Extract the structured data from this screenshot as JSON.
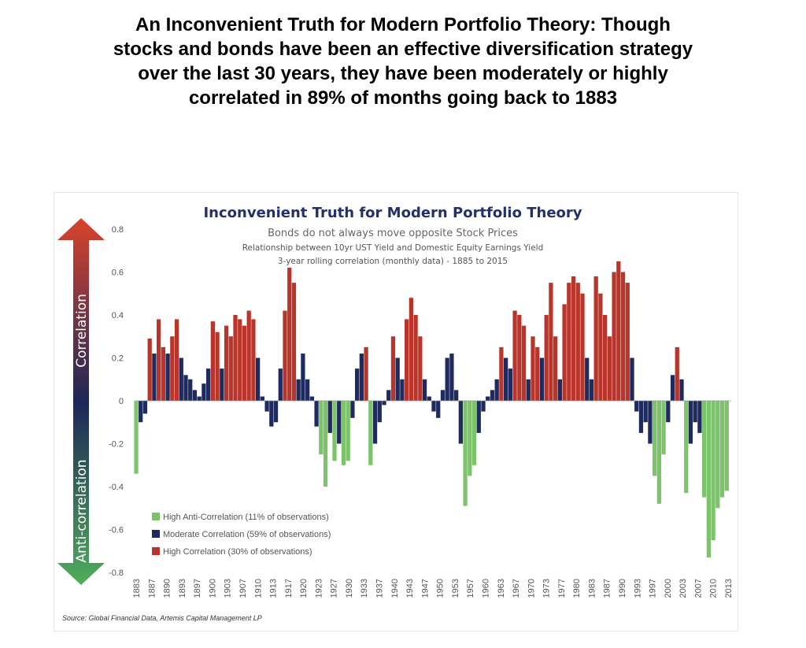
{
  "headline": {
    "lines": [
      "An Inconvenient Truth for Modern Portfolio Theory: Though",
      "stocks and bonds have been an effective diversification strategy",
      "over the last 30 years, they have been moderately or highly",
      "correlated in 89% of months going back to 1883"
    ]
  },
  "colors": {
    "high_anti": "#7dc36b",
    "moderate": "#1f2a5e",
    "high_corr": "#b8352c",
    "title": "#22306b",
    "arrow_top": "#d9432c",
    "arrow_mid": "#1d2758",
    "arrow_bottom": "#4fae5a"
  },
  "chart_data": {
    "type": "bar",
    "title": "Inconvenient Truth for Modern Portfolio Theory",
    "subtitle": "Bonds do not always move opposite Stock Prices",
    "subtitle2": "Relationship between 10yr UST Yield and Domestic Equity Earnings Yield",
    "subtitle3": "3-year rolling correlation (monthly data) - 1885 to 2015",
    "ylim": [
      -0.8,
      0.8
    ],
    "yticks": [
      0.8,
      0.6,
      0.4,
      0.2,
      0,
      -0.2,
      -0.4,
      -0.6,
      -0.8
    ],
    "ytick_labels": [
      "0.8",
      "0.6",
      "0.4",
      "0.2",
      "0",
      "-0.2",
      "-0.4",
      "-0.6",
      "-0.8"
    ],
    "xlim": [
      1883,
      2015
    ],
    "xticks": [
      "1883",
      "1887",
      "1890",
      "1893",
      "1897",
      "1900",
      "1903",
      "1907",
      "1910",
      "1913",
      "1917",
      "1920",
      "1923",
      "1927",
      "1930",
      "1933",
      "1937",
      "1940",
      "1943",
      "1947",
      "1950",
      "1953",
      "1957",
      "1960",
      "1963",
      "1967",
      "1970",
      "1973",
      "1977",
      "1980",
      "1983",
      "1987",
      "1990",
      "1993",
      "1997",
      "2000",
      "2003",
      "2007",
      "2010",
      "2013"
    ],
    "thresholds": {
      "high_corr_above": 0.25,
      "high_anti_below": -0.25
    },
    "series": [
      {
        "x": [
          1883,
          1884,
          1885,
          1886,
          1887,
          1888,
          1889,
          1890,
          1891,
          1892,
          1893,
          1894,
          1895,
          1896,
          1897,
          1898,
          1899,
          1900,
          1901,
          1902,
          1903,
          1904,
          1905,
          1906,
          1907,
          1908,
          1909,
          1910,
          1911,
          1912,
          1913,
          1914,
          1915,
          1916,
          1917,
          1918,
          1919,
          1920,
          1921,
          1922,
          1923,
          1924,
          1925,
          1926,
          1927,
          1928,
          1929,
          1930,
          1931,
          1932,
          1933,
          1934,
          1935,
          1936,
          1937,
          1938,
          1939,
          1940,
          1941,
          1942,
          1943,
          1944,
          1945,
          1946,
          1947,
          1948,
          1949,
          1950,
          1951,
          1952,
          1953,
          1954,
          1955,
          1956,
          1957,
          1958,
          1959,
          1960,
          1961,
          1962,
          1963,
          1964,
          1965,
          1966,
          1967,
          1968,
          1969,
          1970,
          1971,
          1972,
          1973,
          1974,
          1975,
          1976,
          1977,
          1978,
          1979,
          1980,
          1981,
          1982,
          1983,
          1984,
          1985,
          1986,
          1987,
          1988,
          1989,
          1990,
          1991,
          1992,
          1993,
          1994,
          1995,
          1996,
          1997,
          1998,
          1999,
          2000,
          2001,
          2002,
          2003,
          2004,
          2005,
          2006,
          2007,
          2008,
          2009,
          2010,
          2011,
          2012,
          2013,
          2014
        ],
        "values": [
          -0.34,
          -0.1,
          -0.06,
          0.29,
          0.22,
          0.38,
          0.25,
          0.22,
          0.3,
          0.38,
          0.2,
          0.12,
          0.1,
          0.05,
          0.02,
          0.08,
          0.15,
          0.37,
          0.32,
          0.15,
          0.35,
          0.3,
          0.4,
          0.38,
          0.35,
          0.42,
          0.38,
          0.2,
          0.02,
          -0.05,
          -0.12,
          -0.1,
          0.15,
          0.42,
          0.62,
          0.55,
          0.1,
          0.22,
          0.1,
          0.02,
          -0.12,
          -0.25,
          -0.4,
          -0.15,
          -0.28,
          -0.2,
          -0.3,
          -0.28,
          -0.08,
          0.15,
          0.22,
          0.25,
          -0.3,
          -0.2,
          -0.1,
          -0.02,
          0.05,
          0.3,
          0.2,
          0.1,
          0.38,
          0.48,
          0.4,
          0.3,
          0.1,
          0.02,
          -0.05,
          -0.08,
          0.05,
          0.2,
          0.22,
          0.05,
          -0.2,
          -0.49,
          -0.35,
          -0.3,
          -0.15,
          -0.05,
          0.02,
          0.05,
          0.1,
          0.25,
          0.2,
          0.15,
          0.42,
          0.4,
          0.35,
          0.1,
          0.3,
          0.25,
          0.2,
          0.4,
          0.55,
          0.3,
          0.1,
          0.45,
          0.55,
          0.58,
          0.55,
          0.5,
          0.2,
          0.1,
          0.58,
          0.5,
          0.4,
          0.3,
          0.6,
          0.65,
          0.6,
          0.55,
          0.2,
          -0.05,
          -0.15,
          -0.1,
          -0.2,
          -0.35,
          -0.48,
          -0.25,
          -0.1,
          0.12,
          0.25,
          0.1,
          -0.43,
          -0.2,
          -0.1,
          -0.15,
          -0.45,
          -0.73,
          -0.65,
          -0.5,
          -0.45,
          -0.42
        ]
      }
    ],
    "legend": {
      "position": "bottom-left",
      "items": [
        "High Anti-Correlation (11% of observations)",
        "Moderate Correlation (59% of observations)",
        "High Correlation (30% of observations)"
      ]
    },
    "side_labels": {
      "top": "Correlation",
      "bottom": "Anti-correlation"
    },
    "source": "Source: Global Financial Data, Artemis Capital Management LP"
  }
}
